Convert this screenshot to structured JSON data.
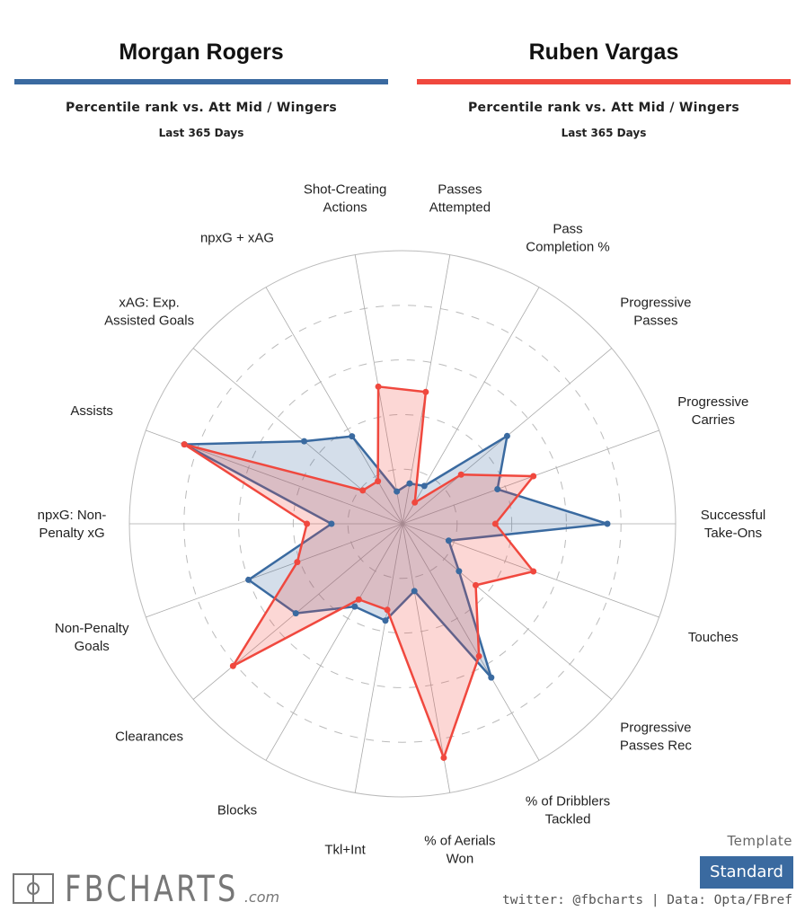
{
  "players": [
    {
      "name": "Morgan Rogers",
      "color": "#3a6aa0",
      "subtitle": "Percentile rank vs. Att Mid / Wingers",
      "period": "Last 365 Days"
    },
    {
      "name": "Ruben Vargas",
      "color": "#f0483e",
      "subtitle": "Percentile rank vs. Att Mid / Wingers",
      "period": "Last 365 Days"
    }
  ],
  "chart_data": {
    "type": "radar",
    "range": [
      0,
      100
    ],
    "rings": [
      20,
      40,
      60,
      80,
      100
    ],
    "categories": [
      [
        "Passes",
        "Attempted"
      ],
      [
        "Pass",
        "Completion %"
      ],
      [
        "Progressive",
        "Passes"
      ],
      [
        "Progressive",
        "Carries"
      ],
      [
        "Successful",
        "Take-Ons"
      ],
      [
        "Touches"
      ],
      [
        "Progressive",
        "Passes Rec"
      ],
      [
        "% of Dribblers",
        "Tackled"
      ],
      [
        "% of Aerials",
        "Won"
      ],
      [
        "Tkl+Int"
      ],
      [
        "Blocks"
      ],
      [
        "Clearances"
      ],
      [
        "Non-Penalty",
        "Goals"
      ],
      [
        "npxG: Non-",
        "Penalty xG"
      ],
      [
        "Assists"
      ],
      [
        "xAG: Exp.",
        "Assisted Goals"
      ],
      [
        "npxG + xAG"
      ],
      [
        "Shot-Creating",
        "Actions"
      ]
    ],
    "series": [
      {
        "name": "Morgan Rogers",
        "color": "#3a6aa0",
        "values": [
          15,
          16,
          50,
          37,
          75,
          18,
          27,
          65,
          25,
          36,
          35,
          51,
          60,
          26,
          85,
          47,
          37,
          12
        ]
      },
      {
        "name": "Ruben Vargas",
        "color": "#f0483e",
        "values": [
          49,
          9,
          28,
          51,
          34,
          51,
          35,
          56,
          87,
          32,
          32,
          81,
          41,
          35,
          85,
          19,
          18,
          51
        ]
      }
    ]
  },
  "footer": {
    "logo": "FBCHARTS.com",
    "template_label": "Template",
    "template_value": "Standard",
    "credit": "twitter: @fbcharts | Data: Opta/FBref"
  }
}
